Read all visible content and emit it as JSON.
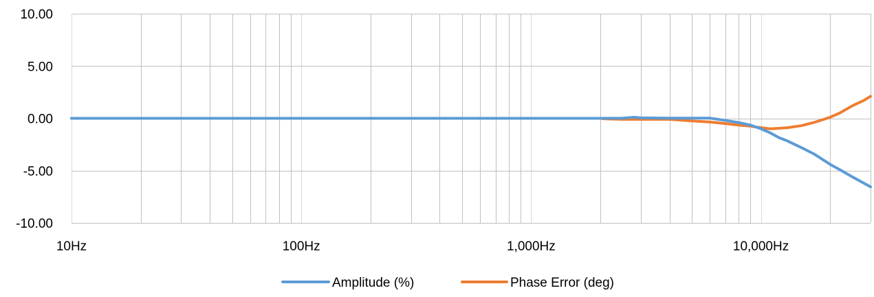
{
  "chart_data": {
    "type": "line",
    "x_scale": "log",
    "xlim": [
      10,
      30000
    ],
    "ylim": [
      -10,
      10
    ],
    "x_ticks": [
      10,
      100,
      1000,
      10000
    ],
    "x_tick_labels": [
      "10Hz",
      "100Hz",
      "1,000Hz",
      "10,000Hz"
    ],
    "y_ticks": [
      10,
      5,
      0,
      -5,
      -10
    ],
    "y_tick_labels": [
      "10.00",
      "5.00",
      "0.00",
      "-5.00",
      "-10.00"
    ],
    "grid": true,
    "legend_position": "bottom",
    "series": [
      {
        "name": "Amplitude (%)",
        "color": "#5b9bd5",
        "points": [
          [
            10,
            0
          ],
          [
            100,
            0
          ],
          [
            1000,
            0
          ],
          [
            2000,
            0
          ],
          [
            2500,
            0.02
          ],
          [
            2800,
            0.1
          ],
          [
            3000,
            0.05
          ],
          [
            4000,
            0.02
          ],
          [
            5000,
            0.02
          ],
          [
            6000,
            0.02
          ],
          [
            6500,
            -0.1
          ],
          [
            7000,
            -0.2
          ],
          [
            8000,
            -0.4
          ],
          [
            9000,
            -0.65
          ],
          [
            10000,
            -1.0
          ],
          [
            11000,
            -1.4
          ],
          [
            12000,
            -1.85
          ],
          [
            13000,
            -2.15
          ],
          [
            15000,
            -2.8
          ],
          [
            17000,
            -3.4
          ],
          [
            20000,
            -4.4
          ],
          [
            22000,
            -4.9
          ],
          [
            25000,
            -5.6
          ],
          [
            30000,
            -6.55
          ]
        ]
      },
      {
        "name": "Phase Error (deg)",
        "color": "#ed7d31",
        "points": [
          [
            10,
            0
          ],
          [
            100,
            0
          ],
          [
            1000,
            0
          ],
          [
            2000,
            0
          ],
          [
            2100,
            -0.05
          ],
          [
            2500,
            -0.1
          ],
          [
            3000,
            -0.1
          ],
          [
            4000,
            -0.1
          ],
          [
            5000,
            -0.25
          ],
          [
            6000,
            -0.35
          ],
          [
            7000,
            -0.5
          ],
          [
            8000,
            -0.65
          ],
          [
            9000,
            -0.75
          ],
          [
            10000,
            -0.9
          ],
          [
            11000,
            -1.0
          ],
          [
            12000,
            -0.95
          ],
          [
            13000,
            -0.9
          ],
          [
            15000,
            -0.7
          ],
          [
            17000,
            -0.4
          ],
          [
            20000,
            0.1
          ],
          [
            22000,
            0.5
          ],
          [
            25000,
            1.2
          ],
          [
            28000,
            1.7
          ],
          [
            30000,
            2.1
          ]
        ]
      }
    ]
  }
}
